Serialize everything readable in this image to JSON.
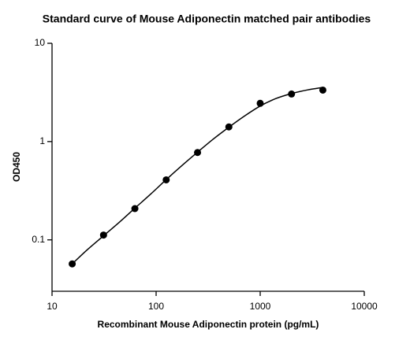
{
  "chart_data": {
    "type": "scatter",
    "title": "Standard curve of Mouse Adiponectin matched pair antibodies",
    "x_label": "Recombinant Mouse Adiponectin protein (pg/mL)",
    "y_label": "OD450",
    "x": [
      15.625,
      31.25,
      62.5,
      125,
      250,
      500,
      1000,
      2000,
      4000
    ],
    "series": [
      {
        "color": "#000000",
        "values": [
          0.057,
          0.112,
          0.208,
          0.408,
          0.774,
          1.41,
          2.45,
          3.05,
          3.34
        ]
      }
    ],
    "curve": {
      "color": "#000000",
      "x": [
        15.625,
        22,
        31.25,
        44,
        62.5,
        88,
        125,
        177,
        250,
        354,
        500,
        707,
        1000,
        1414,
        2000,
        2828,
        4000
      ],
      "y": [
        0.057,
        0.08,
        0.11,
        0.15,
        0.21,
        0.29,
        0.41,
        0.57,
        0.78,
        1.06,
        1.4,
        1.82,
        2.3,
        2.74,
        3.08,
        3.35,
        3.56
      ]
    },
    "x_log": true,
    "y_log": true,
    "xlim": [
      10,
      10000
    ],
    "ylim": [
      0.03,
      10
    ],
    "xticks": [
      10,
      100,
      1000,
      10000
    ],
    "yticks": [
      0.1,
      1,
      10
    ]
  }
}
